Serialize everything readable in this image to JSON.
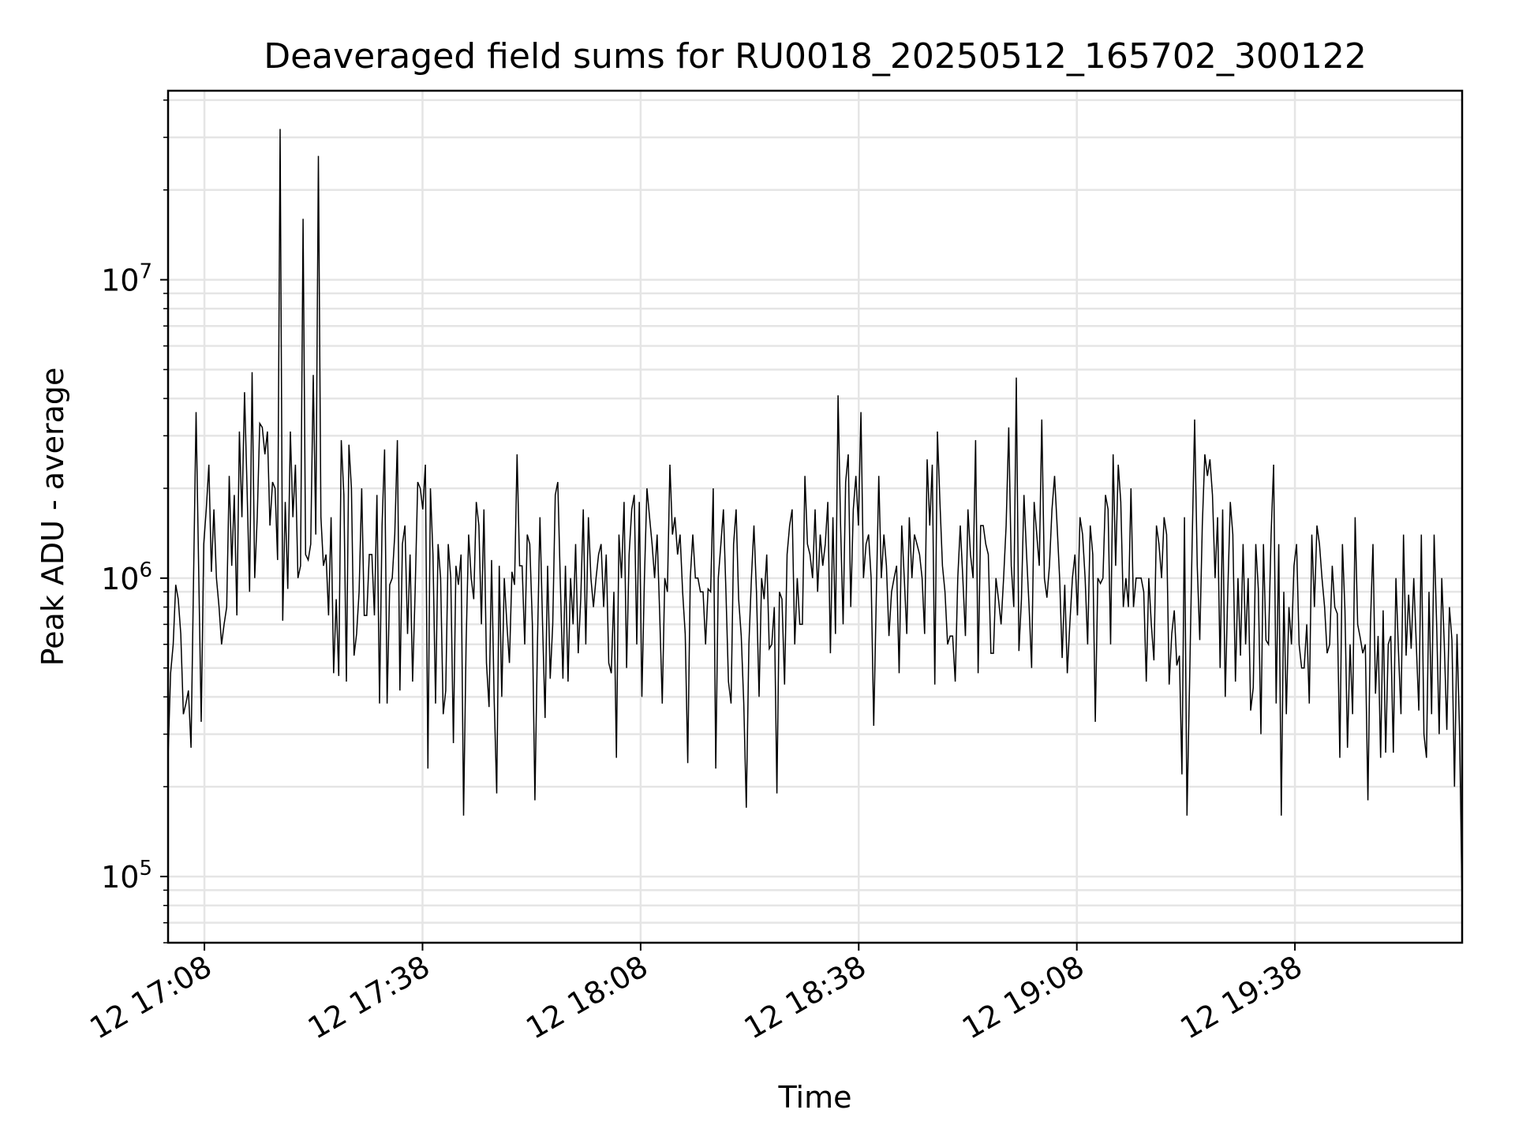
{
  "chart_data": {
    "type": "line",
    "title": "Deaveraged field sums for RU0018_20250512_165702_300122",
    "xlabel": "Time",
    "ylabel": "Peak ADU - average",
    "yscale": "log",
    "ylim": [
      60000,
      43000000
    ],
    "xlim": [
      "2025-05-12 17:03",
      "2025-05-12 20:01"
    ],
    "grid": true,
    "line_color": "#000000",
    "grid_color": "#e5e5e5",
    "x_ticks": [
      {
        "value": "2025-05-12 17:08",
        "label": "12 17:08"
      },
      {
        "value": "2025-05-12 17:38",
        "label": "12 17:38"
      },
      {
        "value": "2025-05-12 18:08",
        "label": "12 18:08"
      },
      {
        "value": "2025-05-12 18:38",
        "label": "12 18:38"
      },
      {
        "value": "2025-05-12 19:08",
        "label": "12 19:08"
      },
      {
        "value": "2025-05-12 19:38",
        "label": "12 19:38"
      }
    ],
    "y_ticks": [
      {
        "value": 100000,
        "base": "10",
        "exp": "5"
      },
      {
        "value": 1000000,
        "base": "10",
        "exp": "6"
      },
      {
        "value": 10000000,
        "base": "10",
        "exp": "7"
      }
    ],
    "series": [
      {
        "x_start": "2025-05-12 17:03",
        "x_end": "2025-05-12 20:01",
        "values": [
          250000,
          480000,
          600000,
          950000,
          850000,
          650000,
          350000,
          380000,
          420000,
          270000,
          1000000,
          3600000,
          1100000,
          330000,
          1300000,
          1700000,
          2400000,
          1050000,
          1700000,
          1000000,
          800000,
          600000,
          700000,
          800000,
          2200000,
          1100000,
          1900000,
          750000,
          3100000,
          1600000,
          4200000,
          2000000,
          900000,
          4900000,
          1000000,
          1600000,
          3300000,
          3200000,
          2600000,
          3100000,
          1500000,
          2100000,
          2000000,
          1150000,
          32000000,
          720000,
          1800000,
          920000,
          3100000,
          1600000,
          2400000,
          1000000,
          1100000,
          16000000,
          1200000,
          1150000,
          1300000,
          4800000,
          1400000,
          26000000,
          1600000,
          1100000,
          1200000,
          750000,
          1600000,
          480000,
          850000,
          470000,
          2900000,
          1900000,
          450000,
          2800000,
          2000000,
          550000,
          650000,
          900000,
          2000000,
          750000,
          750000,
          1200000,
          1200000,
          750000,
          1900000,
          380000,
          1500000,
          2700000,
          380000,
          950000,
          1000000,
          1400000,
          2900000,
          420000,
          1300000,
          1500000,
          650000,
          1200000,
          450000,
          900000,
          2100000,
          2000000,
          1700000,
          2400000,
          230000,
          2000000,
          1200000,
          380000,
          1300000,
          1000000,
          350000,
          420000,
          1300000,
          1000000,
          280000,
          1100000,
          950000,
          1200000,
          160000,
          600000,
          1400000,
          1000000,
          850000,
          1800000,
          1500000,
          700000,
          1700000,
          520000,
          370000,
          1150000,
          400000,
          190000,
          1100000,
          400000,
          1000000,
          700000,
          520000,
          1050000,
          950000,
          2600000,
          1100000,
          1100000,
          600000,
          1400000,
          1300000,
          700000,
          180000,
          600000,
          1600000,
          700000,
          340000,
          1100000,
          460000,
          700000,
          1900000,
          2100000,
          950000,
          460000,
          1100000,
          450000,
          1000000,
          700000,
          1300000,
          560000,
          850000,
          1700000,
          600000,
          1600000,
          1000000,
          800000,
          1000000,
          1200000,
          1300000,
          800000,
          1200000,
          520000,
          480000,
          900000,
          250000,
          1400000,
          1000000,
          1800000,
          500000,
          1200000,
          1700000,
          1900000,
          600000,
          1800000,
          400000,
          1000000,
          2000000,
          1600000,
          1300000,
          1000000,
          1400000,
          750000,
          380000,
          1000000,
          900000,
          2400000,
          1400000,
          1600000,
          1200000,
          1400000,
          900000,
          650000,
          240000,
          1000000,
          1400000,
          1000000,
          1000000,
          900000,
          900000,
          600000,
          920000,
          900000,
          2000000,
          230000,
          1000000,
          1300000,
          1700000,
          900000,
          450000,
          380000,
          1300000,
          1700000,
          850000,
          640000,
          380000,
          170000,
          600000,
          1000000,
          1500000,
          900000,
          400000,
          1000000,
          850000,
          1200000,
          580000,
          600000,
          800000,
          190000,
          900000,
          850000,
          440000,
          1200000,
          1500000,
          1700000,
          600000,
          1000000,
          700000,
          700000,
          2200000,
          1300000,
          1200000,
          1000000,
          1700000,
          900000,
          1400000,
          1100000,
          1300000,
          1800000,
          560000,
          1600000,
          650000,
          4100000,
          1500000,
          700000,
          2100000,
          2600000,
          800000,
          1700000,
          2200000,
          1500000,
          3600000,
          1000000,
          1300000,
          1400000,
          1000000,
          320000,
          850000,
          2200000,
          1000000,
          1400000,
          1100000,
          640000,
          900000,
          1000000,
          1100000,
          480000,
          1500000,
          1000000,
          650000,
          1600000,
          1000000,
          1400000,
          1300000,
          1200000,
          1000000,
          650000,
          2500000,
          1500000,
          2400000,
          440000,
          3100000,
          1800000,
          1100000,
          900000,
          600000,
          640000,
          640000,
          450000,
          1000000,
          1500000,
          1000000,
          640000,
          1700000,
          1200000,
          1000000,
          2900000,
          480000,
          1500000,
          1500000,
          1300000,
          1200000,
          560000,
          560000,
          1000000,
          850000,
          700000,
          1000000,
          1500000,
          3200000,
          1100000,
          800000,
          4700000,
          570000,
          850000,
          1900000,
          1200000,
          800000,
          500000,
          1800000,
          1400000,
          1100000,
          3400000,
          1000000,
          860000,
          1100000,
          1700000,
          2200000,
          1500000,
          1000000,
          540000,
          950000,
          480000,
          700000,
          1000000,
          1200000,
          750000,
          1600000,
          1400000,
          1000000,
          600000,
          1500000,
          1200000,
          330000,
          1000000,
          960000,
          1000000,
          1900000,
          1700000,
          600000,
          2600000,
          1100000,
          2400000,
          1800000,
          800000,
          1000000,
          800000,
          2000000,
          800000,
          1000000,
          1000000,
          1000000,
          900000,
          450000,
          1000000,
          700000,
          530000,
          1500000,
          1300000,
          1000000,
          1600000,
          1400000,
          440000,
          650000,
          780000,
          510000,
          550000,
          220000,
          1600000,
          160000,
          450000,
          1300000,
          3400000,
          1100000,
          620000,
          1500000,
          2600000,
          2200000,
          2500000,
          1900000,
          1000000,
          1600000,
          500000,
          1700000,
          400000,
          900000,
          1800000,
          1400000,
          450000,
          1000000,
          550000,
          1300000,
          600000,
          1000000,
          360000,
          430000,
          1300000,
          920000,
          300000,
          1300000,
          620000,
          600000,
          1400000,
          2400000,
          380000,
          1300000,
          160000,
          900000,
          350000,
          800000,
          600000,
          1100000,
          1300000,
          600000,
          500000,
          500000,
          700000,
          380000,
          1400000,
          800000,
          1500000,
          1300000,
          1000000,
          800000,
          560000,
          600000,
          1100000,
          800000,
          760000,
          250000,
          1300000,
          780000,
          270000,
          600000,
          350000,
          1600000,
          700000,
          630000,
          560000,
          600000,
          180000,
          700000,
          1300000,
          410000,
          640000,
          250000,
          780000,
          260000,
          600000,
          640000,
          260000,
          1000000,
          570000,
          350000,
          1400000,
          550000,
          880000,
          580000,
          1000000,
          600000,
          360000,
          1400000,
          300000,
          250000,
          900000,
          350000,
          1400000,
          700000,
          300000,
          1000000,
          600000,
          310000,
          800000,
          620000,
          200000,
          650000,
          300000,
          80000
        ]
      }
    ]
  }
}
